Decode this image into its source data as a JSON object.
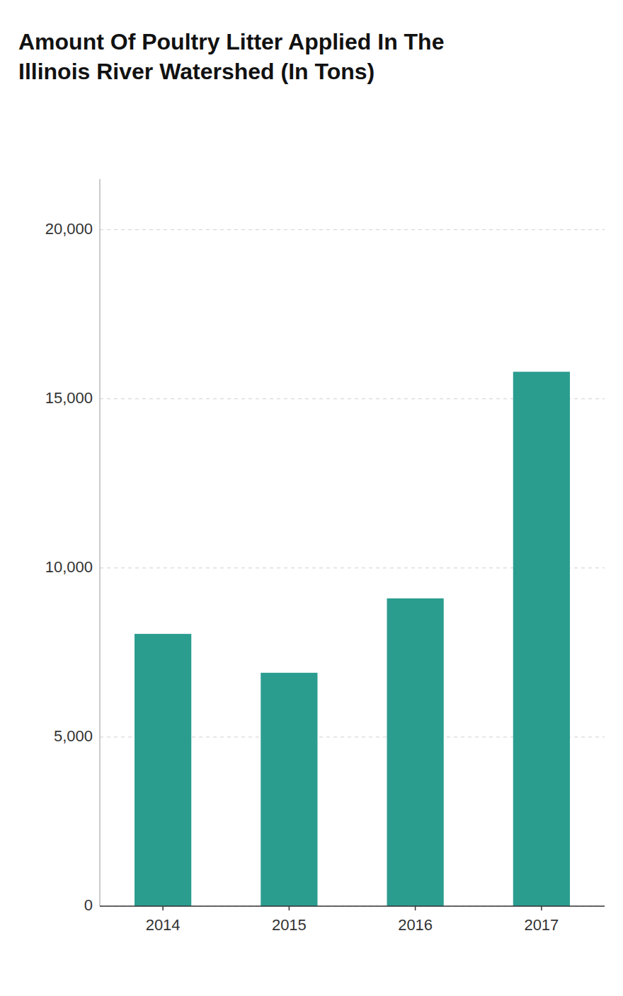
{
  "chart_data": {
    "type": "bar",
    "title": "Amount Of Poultry Litter Applied In The\nIllinois River Watershed (In Tons)",
    "categories": [
      "2014",
      "2015",
      "2016",
      "2017"
    ],
    "values": [
      8050,
      6900,
      9100,
      15800
    ],
    "color": "#2a9d8f",
    "ylim": [
      0,
      21500
    ],
    "yticks": [
      0,
      {
        "value": 5000,
        "label": "5,000"
      },
      {
        "value": 10000,
        "label": "10,000"
      },
      {
        "value": 15000,
        "label": "15,000"
      },
      {
        "value": 20000,
        "label": "20,000"
      }
    ],
    "grid": true
  }
}
